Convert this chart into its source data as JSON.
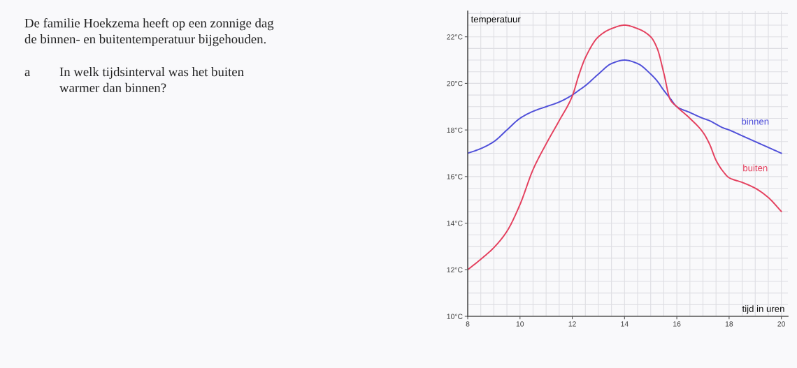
{
  "chart_data": {
    "type": "line",
    "title": "De familie Hoekzema heeft op een zonnige dag\nde binnen- en buitentemperatuur bijgehouden.",
    "annotations": [
      "a",
      "In welk tijdsinterval was het buiten\nwarmer dan binnen?"
    ],
    "xlabel": "tijd in uren",
    "ylabel": "temperatuur",
    "x": [
      8,
      8.5,
      9,
      9.5,
      10,
      10.5,
      11,
      11.5,
      12,
      12.25,
      12.5,
      13,
      13.5,
      14,
      14.5,
      15,
      15.25,
      15.5,
      15.75,
      16,
      16.5,
      17,
      17.25,
      17.5,
      17.75,
      18,
      18.5,
      19,
      19.5,
      20
    ],
    "series": [
      {
        "name": "binnen",
        "color": "#4f4fd9",
        "values": [
          17.0,
          17.2,
          17.5,
          18.0,
          18.5,
          18.8,
          19.0,
          19.2,
          19.5,
          19.7,
          19.9,
          20.4,
          20.85,
          21.0,
          20.85,
          20.4,
          20.1,
          19.7,
          19.35,
          19.0,
          18.75,
          18.5,
          18.4,
          18.25,
          18.1,
          18.0,
          17.75,
          17.5,
          17.25,
          17.0
        ]
      },
      {
        "name": "buiten",
        "color": "#e4405e",
        "values": [
          12.0,
          12.45,
          12.95,
          13.65,
          14.8,
          16.3,
          17.4,
          18.4,
          19.45,
          20.35,
          21.1,
          22.0,
          22.35,
          22.5,
          22.35,
          22.0,
          21.5,
          20.45,
          19.3,
          19.0,
          18.5,
          17.9,
          17.4,
          16.7,
          16.25,
          15.95,
          15.75,
          15.5,
          15.1,
          14.5
        ]
      }
    ],
    "xlim": [
      8,
      20.25
    ],
    "ylim": [
      10,
      23.1
    ],
    "xticks": [
      8,
      10,
      12,
      14,
      16,
      18,
      20
    ],
    "yticks": [
      {
        "value": 10,
        "label": "10°C"
      },
      {
        "value": 12,
        "label": "12°C"
      },
      {
        "value": 14,
        "label": "14°C"
      },
      {
        "value": 16,
        "label": "16°C"
      },
      {
        "value": 18,
        "label": "18°C"
      },
      {
        "value": 20,
        "label": "20°C"
      },
      {
        "value": 22,
        "label": "22°C"
      }
    ],
    "grid": true
  }
}
